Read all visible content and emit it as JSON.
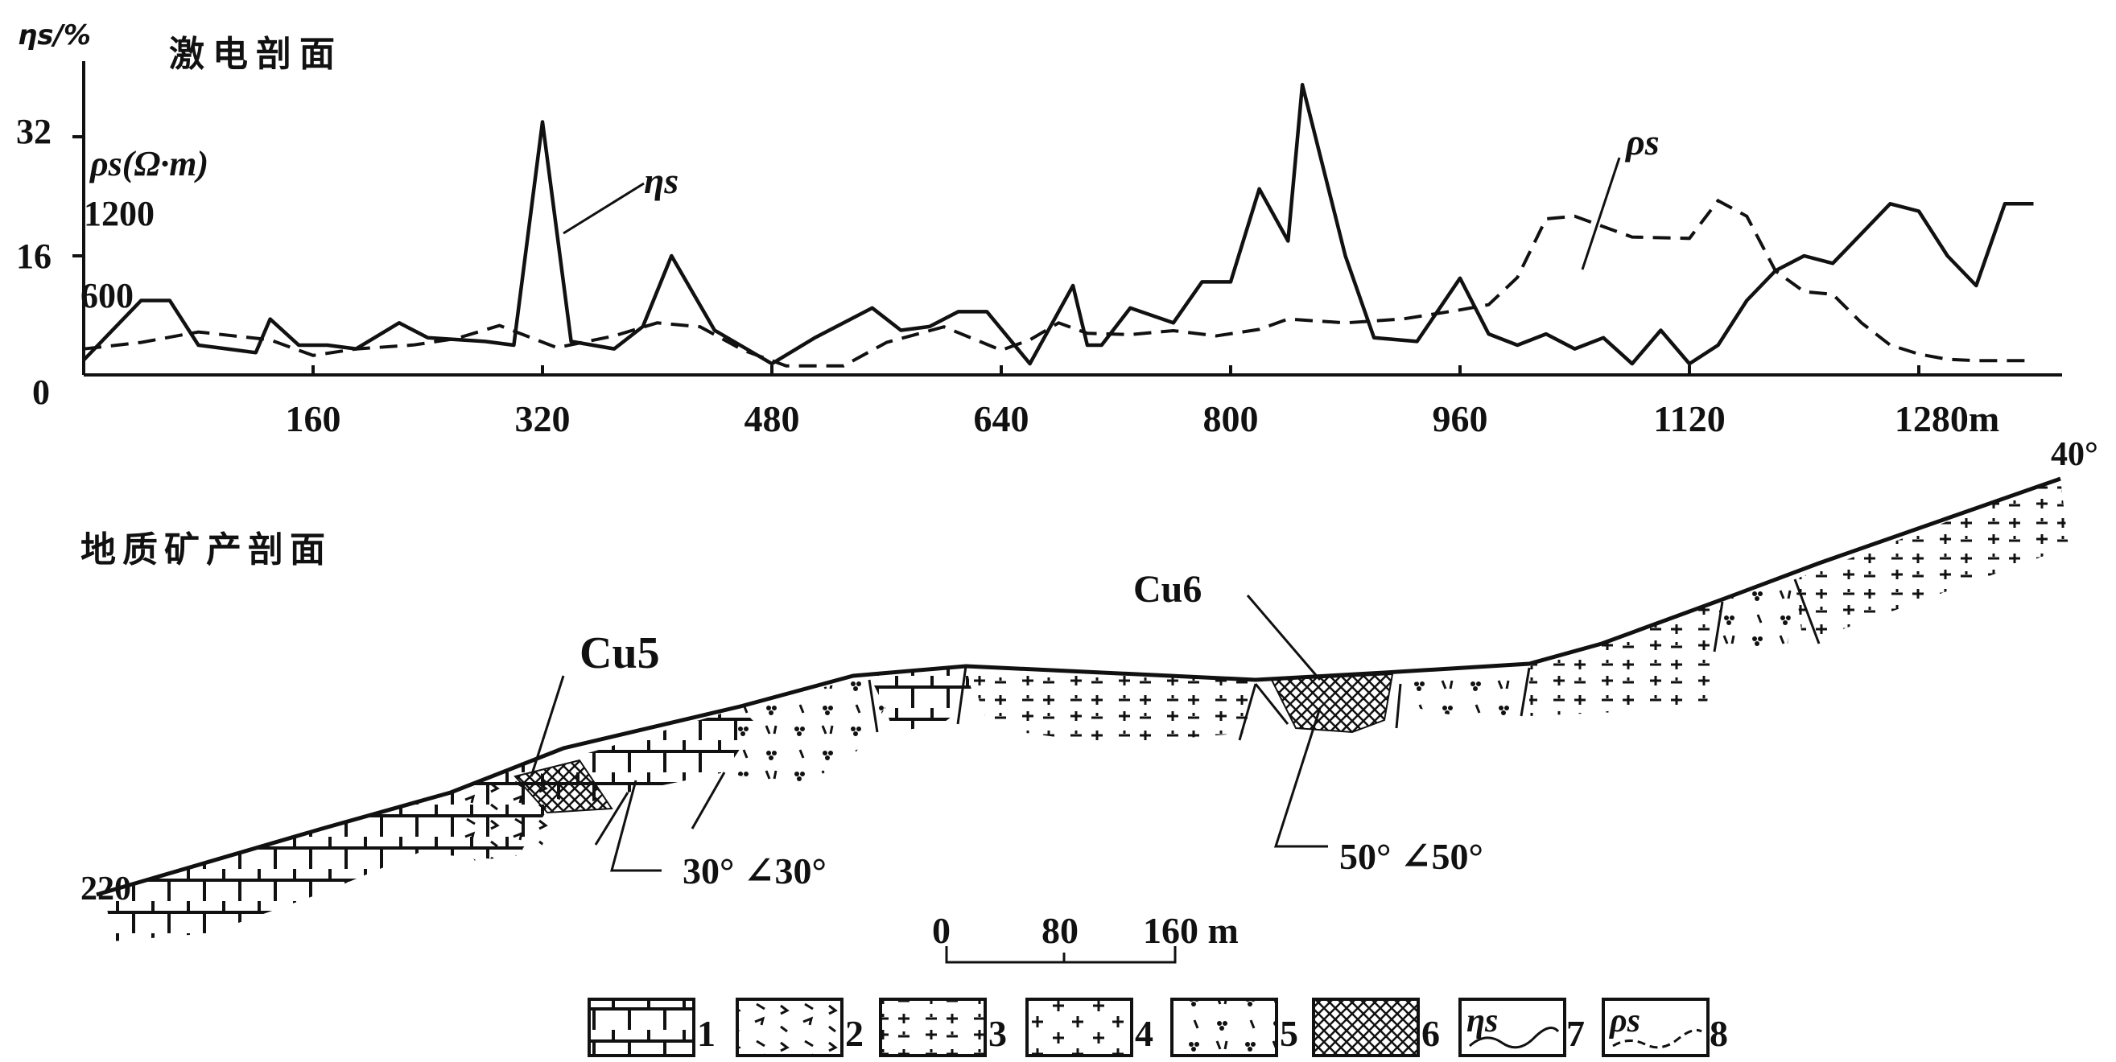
{
  "top_panel": {
    "title": "激电剖面",
    "eta_axis_label": "ηs/%",
    "eta_ticks": [
      "32",
      "16",
      "0"
    ],
    "rho_axis_label": "ρs(Ω·m)",
    "rho_ticks": [
      "1200",
      "600"
    ],
    "x_ticks": [
      "160",
      "320",
      "480",
      "640",
      "800",
      "960",
      "1120",
      "1280m"
    ],
    "eta_curve_label": "ηs",
    "rho_curve_label": "ρs"
  },
  "chart_data": {
    "type": "line",
    "x_unit": "m",
    "xlim": [
      0,
      1380
    ],
    "series": [
      {
        "name": "ηs",
        "axis": "left",
        "style": "solid",
        "x": [
          0,
          40,
          60,
          80,
          100,
          120,
          130,
          150,
          170,
          190,
          220,
          240,
          280,
          300,
          320,
          340,
          370,
          390,
          410,
          440,
          480,
          510,
          550,
          570,
          590,
          610,
          630,
          660,
          690,
          700,
          710,
          730,
          760,
          780,
          800,
          820,
          840,
          850,
          880,
          900,
          930,
          960,
          980,
          1000,
          1020,
          1040,
          1060,
          1080,
          1100,
          1120,
          1140,
          1160,
          1180,
          1200,
          1220,
          1240,
          1260,
          1280,
          1300,
          1320,
          1340,
          1360
        ],
        "values": [
          2,
          10,
          10,
          4,
          3.5,
          3,
          7.5,
          4,
          4,
          3.5,
          7,
          5,
          4.5,
          4,
          34,
          4.5,
          3.5,
          6.5,
          16,
          6,
          1.5,
          5,
          9,
          6,
          6.5,
          8.5,
          8.5,
          1.5,
          12,
          4,
          4,
          9,
          7,
          12.5,
          12.5,
          25,
          18,
          39,
          16,
          5,
          4.5,
          13,
          5.5,
          4,
          5.5,
          3.5,
          5,
          1.5,
          6,
          1.5,
          4,
          10,
          14,
          16,
          15,
          19,
          23,
          22,
          16,
          12,
          23,
          23
        ]
      },
      {
        "name": "ρs",
        "axis": "right",
        "style": "dashed",
        "x": [
          0,
          40,
          80,
          130,
          160,
          190,
          230,
          260,
          290,
          330,
          370,
          400,
          430,
          460,
          490,
          530,
          560,
          600,
          640,
          660,
          680,
          700,
          730,
          760,
          790,
          820,
          840,
          880,
          920,
          960,
          980,
          1000,
          1020,
          1040,
          1080,
          1120,
          1140,
          1160,
          1180,
          1200,
          1220,
          1240,
          1260,
          1280,
          1300,
          1320,
          1340,
          1360
        ],
        "values": [
          200,
          250,
          330,
          270,
          150,
          200,
          230,
          280,
          380,
          210,
          300,
          400,
          370,
          190,
          70,
          70,
          250,
          370,
          190,
          270,
          400,
          320,
          310,
          340,
          300,
          350,
          430,
          400,
          430,
          500,
          540,
          750,
          1200,
          1220,
          1060,
          1050,
          1340,
          1220,
          800,
          640,
          620,
          400,
          230,
          160,
          120,
          110,
          110,
          110
        ]
      }
    ]
  },
  "bottom_panel": {
    "title": "地质矿产剖面",
    "label_cu5": "Cu5",
    "label_cu6": "Cu6",
    "dip_left": "30°  ∠30°",
    "dip_right": "50°  ∠50°",
    "elev_left": "220",
    "elev_right": "40°",
    "scale_ticks": [
      "0",
      "80",
      "160 m"
    ]
  },
  "legend": [
    {
      "number": "1",
      "pattern": "brick"
    },
    {
      "number": "2",
      "pattern": "volcanic"
    },
    {
      "number": "3",
      "pattern": "plus-minus"
    },
    {
      "number": "4",
      "pattern": "plus"
    },
    {
      "number": "5",
      "pattern": "dots"
    },
    {
      "number": "6",
      "pattern": "crosshatch"
    },
    {
      "number": "7",
      "pattern": "eta-curve",
      "symbol": "ηs"
    },
    {
      "number": "8",
      "pattern": "rho-curve",
      "symbol": "ρs"
    }
  ]
}
